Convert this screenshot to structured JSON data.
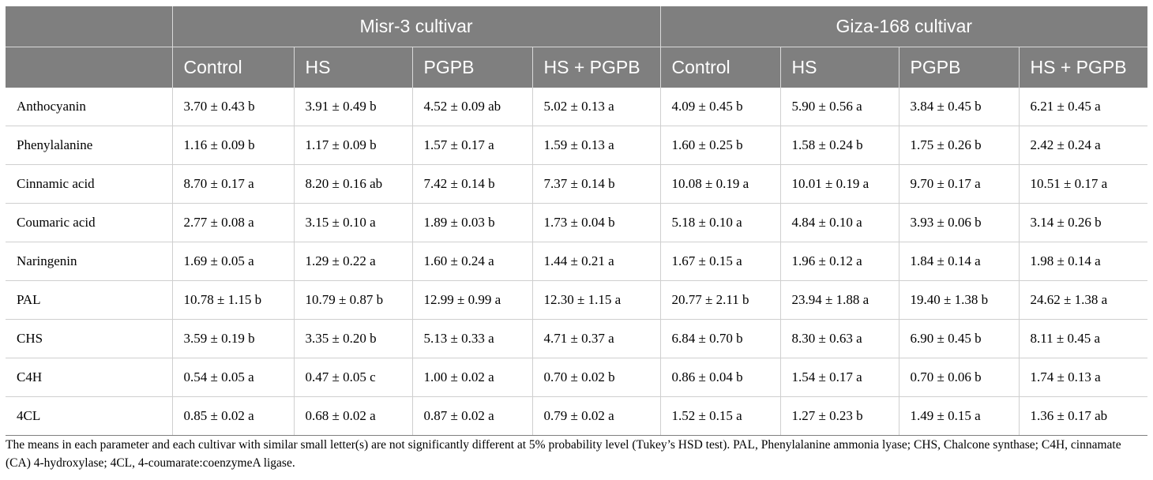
{
  "table": {
    "groups": [
      "Misr-3 cultivar",
      "Giza-168 cultivar"
    ],
    "treatments": [
      "Control",
      "HS",
      "PGPB",
      "HS + PGPB",
      "Control",
      "HS",
      "PGPB",
      "HS + PGPB"
    ],
    "rows": [
      {
        "param": "Anthocyanin",
        "values": [
          "3.70 ± 0.43 b",
          "3.91 ± 0.49 b",
          "4.52 ± 0.09 ab",
          "5.02 ± 0.13 a",
          "4.09 ± 0.45 b",
          "5.90 ± 0.56 a",
          "3.84 ± 0.45 b",
          "6.21 ± 0.45 a"
        ]
      },
      {
        "param": "Phenylalanine",
        "values": [
          "1.16 ± 0.09 b",
          "1.17 ± 0.09 b",
          "1.57 ± 0.17 a",
          "1.59 ± 0.13 a",
          "1.60 ± 0.25 b",
          "1.58 ± 0.24 b",
          "1.75 ± 0.26 b",
          "2.42 ± 0.24 a"
        ]
      },
      {
        "param": "Cinnamic acid",
        "values": [
          "8.70 ± 0.17 a",
          "8.20 ± 0.16 ab",
          "7.42 ± 0.14 b",
          "7.37 ± 0.14 b",
          "10.08 ± 0.19 a",
          "10.01 ± 0.19 a",
          "9.70 ± 0.17 a",
          "10.51 ± 0.17 a"
        ]
      },
      {
        "param": "Coumaric acid",
        "values": [
          "2.77 ± 0.08 a",
          "3.15 ± 0.10 a",
          "1.89 ± 0.03 b",
          "1.73 ± 0.04 b",
          "5.18 ± 0.10 a",
          "4.84 ± 0.10 a",
          "3.93 ± 0.06 b",
          "3.14 ± 0.26 b"
        ]
      },
      {
        "param": "Naringenin",
        "values": [
          "1.69 ± 0.05 a",
          "1.29 ± 0.22 a",
          "1.60 ± 0.24 a",
          "1.44 ± 0.21 a",
          "1.67 ± 0.15 a",
          "1.96 ± 0.12 a",
          "1.84 ± 0.14 a",
          "1.98 ± 0.14 a"
        ]
      },
      {
        "param": "PAL",
        "values": [
          "10.78 ± 1.15 b",
          "10.79 ± 0.87 b",
          "12.99 ± 0.99 a",
          "12.30 ± 1.15 a",
          "20.77 ± 2.11 b",
          "23.94 ± 1.88 a",
          "19.40 ± 1.38 b",
          "24.62 ± 1.38 a"
        ]
      },
      {
        "param": "CHS",
        "values": [
          "3.59 ± 0.19 b",
          "3.35 ± 0.20 b",
          "5.13 ± 0.33 a",
          "4.71 ± 0.37 a",
          "6.84 ± 0.70 b",
          "8.30 ± 0.63 a",
          "6.90 ± 0.45 b",
          "8.11 ± 0.45 a"
        ]
      },
      {
        "param": "C4H",
        "values": [
          "0.54 ± 0.05 a",
          "0.47 ± 0.05 c",
          "1.00 ± 0.02 a",
          "0.70 ± 0.02 b",
          "0.86 ± 0.04 b",
          "1.54 ± 0.17 a",
          "0.70 ± 0.06 b",
          "1.74 ± 0.13 a"
        ]
      },
      {
        "param": "4CL",
        "values": [
          "0.85 ± 0.02 a",
          "0.68 ± 0.02 a",
          "0.87 ± 0.02 a",
          "0.79 ± 0.02 a",
          "1.52 ± 0.15 a",
          "1.27 ± 0.23 b",
          "1.49 ± 0.15 a",
          "1.36 ± 0.17 ab"
        ]
      }
    ]
  },
  "footnote": "The means in each parameter and each cultivar with similar small letter(s) are not significantly different at 5% probability level (Tukey’s HSD test). PAL, Phenylalanine ammonia lyase; CHS, Chalcone synthase; C4H, cinnamate (CA) 4-hydroxylase; 4CL, 4-coumarate:coenzymeA ligase."
}
